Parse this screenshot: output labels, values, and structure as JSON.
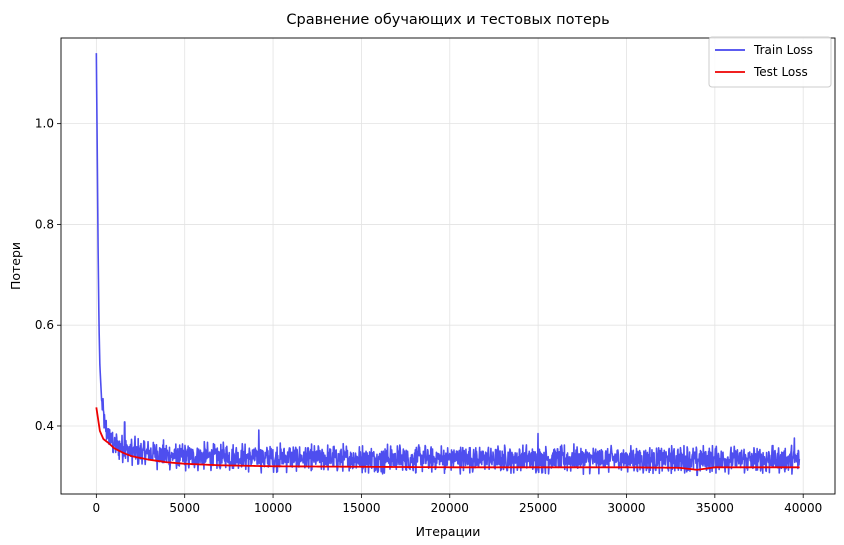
{
  "chart_data": {
    "type": "line",
    "title": "Сравнение обучающих и тестовых потерь",
    "xlabel": "Итерации",
    "ylabel": "Потери",
    "xlim": [
      -2000,
      41800
    ],
    "ylim": [
      0.265,
      1.17
    ],
    "xticks": [
      0,
      5000,
      10000,
      15000,
      20000,
      25000,
      30000,
      35000,
      40000
    ],
    "yticks": [
      0.4,
      0.6,
      0.8,
      1.0
    ],
    "ytick_labels": [
      "0.4",
      "0.6",
      "0.8",
      "1.0"
    ],
    "grid": true,
    "legend_position": "top-right",
    "series": [
      {
        "name": "Train Loss",
        "color": "#4444ee",
        "x": [
          0,
          50,
          100,
          150,
          200,
          300,
          400,
          500,
          600,
          800,
          1000,
          1500,
          2000,
          3000,
          4000,
          5000,
          6000,
          8000,
          10000,
          15000,
          20000,
          25000,
          30000,
          35000,
          39800
        ],
        "y": [
          1.14,
          0.95,
          0.75,
          0.6,
          0.52,
          0.45,
          0.42,
          0.4,
          0.39,
          0.375,
          0.365,
          0.355,
          0.35,
          0.345,
          0.342,
          0.34,
          0.339,
          0.338,
          0.337,
          0.336,
          0.335,
          0.335,
          0.334,
          0.334,
          0.333
        ],
        "noise_amplitude": 0.022,
        "noise_points": 2000,
        "spikes": [
          [
            9200,
            0.392
          ],
          [
            25000,
            0.385
          ],
          [
            1600,
            0.408
          ],
          [
            39500,
            0.376
          ],
          [
            16200,
            0.305
          ],
          [
            34000,
            0.302
          ]
        ]
      },
      {
        "name": "Test Loss",
        "color": "#ee0000",
        "x": [
          0,
          200,
          400,
          700,
          1000,
          1500,
          2000,
          3000,
          4000,
          5000,
          7000,
          10000,
          15000,
          20000,
          25000,
          30000,
          33000,
          34000,
          35000,
          39800
        ],
        "y": [
          0.437,
          0.39,
          0.374,
          0.366,
          0.356,
          0.347,
          0.34,
          0.333,
          0.328,
          0.325,
          0.322,
          0.32,
          0.319,
          0.318,
          0.318,
          0.318,
          0.317,
          0.313,
          0.318,
          0.318
        ]
      }
    ]
  }
}
